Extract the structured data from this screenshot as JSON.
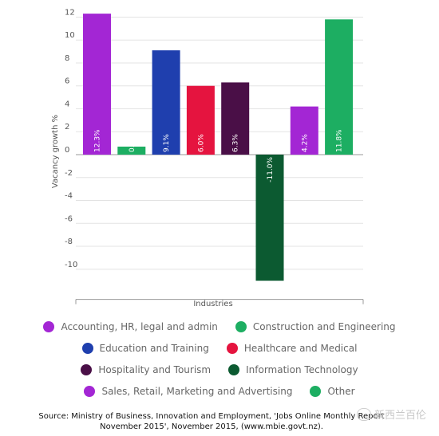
{
  "chart_data": {
    "type": "bar",
    "title": "",
    "xlabel": "Industries",
    "ylabel": "Vacancy growth %",
    "ylim": [
      -11.8,
      13
    ],
    "yticks": [
      12,
      10,
      8,
      6,
      4,
      2,
      0,
      -2,
      -4,
      -6,
      -8,
      -10
    ],
    "grid": true,
    "legend_position": "bottom",
    "categories": [
      "Accounting, HR, legal and admin",
      "Construction and Engineering",
      "Education and Training",
      "Healthcare and Medical",
      "Hospitality and Tourism",
      "Information Technology",
      "Sales, Retail, Marketing and Advertising",
      "Other"
    ],
    "values": [
      12.3,
      0.7,
      9.1,
      6.0,
      6.3,
      -11.0,
      4.2,
      11.8
    ],
    "data_labels": [
      "12.3%",
      "0.7%",
      "9.1%",
      "6.0%",
      "6.3%",
      "-11.0%",
      "4.2%",
      "11.8%"
    ],
    "colors": [
      "#a326d4",
      "#1dae62",
      "#1f3fae",
      "#e5143f",
      "#4a0f47",
      "#0c5a31",
      "#a326d4",
      "#1dae62"
    ]
  },
  "legend_rows": [
    [
      0,
      1
    ],
    [
      2,
      3
    ],
    [
      4,
      5
    ],
    [
      6,
      7
    ]
  ],
  "source": {
    "line1": "Source: Ministry of Business, Innovation and Employment, 'Jobs Online Monthly Report",
    "line2": "November 2015', November 2015, (www.mbie.govt.nz)."
  },
  "watermark": "新西兰百伦"
}
